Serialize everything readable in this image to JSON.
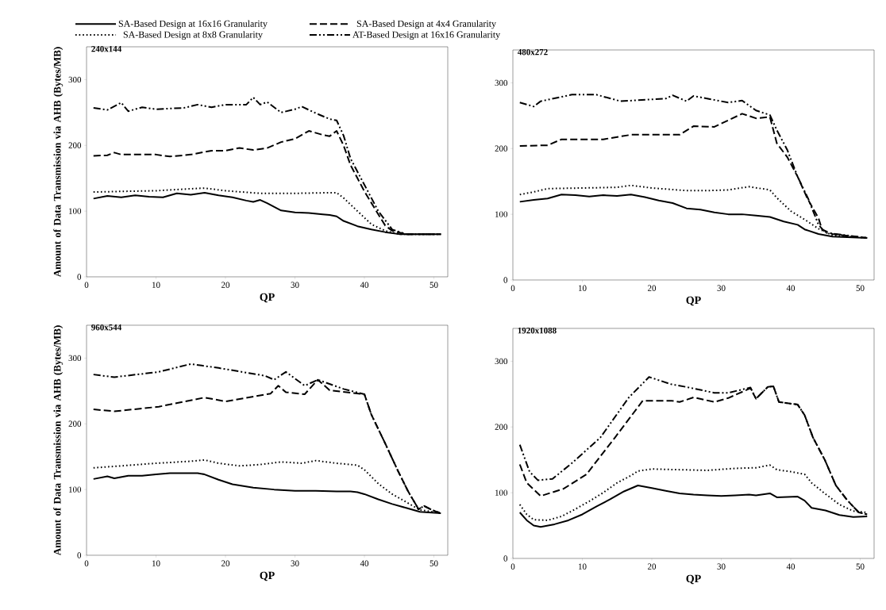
{
  "chart_data": [
    {
      "type": "line",
      "title": "240x144",
      "xlabel": "QP",
      "ylabel": "Amount of Data Transmission via AHB (Bytes/MB)",
      "xlim": [
        0,
        52
      ],
      "ylim": [
        0,
        350
      ],
      "xticks": [
        0,
        10,
        20,
        30,
        40,
        50
      ],
      "yticks": [
        0,
        100,
        200,
        300
      ],
      "legend": "top",
      "series": [
        {
          "name": "SA-Based Design at 16x16 Granularity",
          "color": "#000000",
          "line_style": "solid",
          "x": [
            1,
            3,
            5,
            7,
            9,
            11,
            13,
            15,
            17,
            19,
            21,
            23,
            24,
            25,
            26,
            28,
            30,
            32,
            34,
            35,
            36,
            37,
            39,
            41,
            43,
            45,
            51
          ],
          "values": [
            119,
            123,
            121,
            124,
            122,
            121,
            127,
            125,
            128,
            124,
            121,
            116,
            114,
            117,
            112,
            101,
            98,
            97,
            95,
            94,
            92,
            85,
            77,
            72,
            68,
            65,
            65
          ]
        },
        {
          "name": "SA-Based Design at 4x4 Granularity",
          "color": "#000000",
          "line_style": "dashed",
          "x": [
            1,
            3,
            4,
            5,
            10,
            12,
            15,
            18,
            20,
            22,
            24,
            26,
            28,
            30,
            32,
            34,
            35,
            36,
            37,
            38,
            40,
            42,
            43,
            44,
            46,
            51
          ],
          "values": [
            184,
            185,
            189,
            186,
            186,
            183,
            186,
            192,
            192,
            196,
            193,
            196,
            205,
            210,
            222,
            216,
            214,
            222,
            200,
            170,
            130,
            95,
            78,
            70,
            65,
            65
          ]
        },
        {
          "name": "SA-Based Design at 8x8 Granularity",
          "color": "#000000",
          "line_style": "dotted",
          "x": [
            1,
            5,
            10,
            15,
            17,
            20,
            25,
            30,
            35,
            36,
            37,
            39,
            41,
            43,
            45,
            51
          ],
          "values": [
            129,
            130,
            131,
            134,
            135,
            131,
            127,
            127,
            128,
            128,
            120,
            100,
            80,
            70,
            65,
            65
          ]
        },
        {
          "name": "AT-Based Design at 16x16 Granularity",
          "color": "#000000",
          "line_style": "dashdot",
          "x": [
            1,
            3,
            5,
            6,
            8,
            10,
            14,
            16,
            18,
            20,
            23,
            24,
            25,
            26,
            28,
            30,
            31,
            33,
            35,
            36,
            37,
            38,
            40,
            42,
            44,
            46,
            51
          ],
          "values": [
            257,
            254,
            265,
            252,
            258,
            255,
            257,
            262,
            258,
            262,
            262,
            273,
            262,
            266,
            250,
            255,
            259,
            249,
            240,
            238,
            215,
            180,
            140,
            100,
            72,
            65,
            65
          ]
        }
      ]
    },
    {
      "type": "line",
      "title": "480x272",
      "xlabel": "QP",
      "xlim": [
        0,
        52
      ],
      "ylim": [
        0,
        350
      ],
      "xticks": [
        0,
        10,
        20,
        30,
        40,
        50
      ],
      "yticks": [
        0,
        100,
        200,
        300
      ],
      "series": [
        {
          "color": "#000000",
          "line_style": "solid",
          "x": [
            1,
            3,
            5,
            7,
            9,
            11,
            13,
            15,
            17,
            19,
            21,
            23,
            25,
            27,
            29,
            31,
            33,
            35,
            37,
            39,
            41,
            42,
            44,
            46,
            51
          ],
          "values": [
            119,
            122,
            124,
            130,
            129,
            127,
            129,
            128,
            130,
            126,
            121,
            117,
            109,
            107,
            103,
            100,
            100,
            98,
            96,
            89,
            84,
            77,
            70,
            66,
            64
          ]
        },
        {
          "color": "#000000",
          "line_style": "dashed",
          "x": [
            1,
            5,
            7,
            13,
            17,
            24,
            26,
            29,
            33,
            35,
            37,
            38,
            39.5,
            41,
            42.4,
            44,
            44.5,
            46,
            51
          ],
          "values": [
            204,
            205,
            214,
            214,
            221,
            221,
            234,
            233,
            253,
            246,
            248,
            208,
            187,
            157,
            124,
            94,
            77,
            70,
            64
          ]
        },
        {
          "color": "#000000",
          "line_style": "dotted",
          "x": [
            1,
            3,
            5,
            10,
            15,
            17,
            20,
            25,
            28,
            31,
            34,
            37,
            38,
            40,
            42,
            44,
            46,
            51
          ],
          "values": [
            130,
            134,
            139,
            140,
            141,
            144,
            140,
            136,
            136,
            137,
            142,
            137,
            125,
            105,
            92,
            78,
            68,
            64
          ]
        },
        {
          "color": "#000000",
          "line_style": "dashdot",
          "x": [
            1,
            3,
            4,
            8.5,
            12,
            15.5,
            22,
            23,
            25,
            26,
            31,
            33,
            35,
            37,
            38,
            39.5,
            41,
            42.5,
            44,
            45,
            51
          ],
          "values": [
            270,
            264,
            272,
            282,
            282,
            272,
            276,
            281,
            272,
            280,
            270,
            273,
            258,
            251,
            228,
            198,
            157,
            124,
            84,
            72,
            64
          ]
        }
      ]
    },
    {
      "type": "line",
      "title": "960x544",
      "xlabel": "QP",
      "ylabel": "Amount of Data Transmission via AHB (Bytes/MB)",
      "xlim": [
        0,
        52
      ],
      "ylim": [
        0,
        350
      ],
      "xticks": [
        0,
        10,
        20,
        30,
        40,
        50
      ],
      "yticks": [
        0,
        100,
        200,
        300
      ],
      "series": [
        {
          "color": "#000000",
          "line_style": "solid",
          "x": [
            1,
            3,
            4,
            6,
            8,
            10,
            12,
            14,
            16,
            17,
            19,
            21,
            24,
            27,
            30,
            33,
            36,
            38,
            39,
            40,
            42,
            44,
            46,
            48,
            51
          ],
          "values": [
            116,
            120,
            117,
            121,
            121,
            123,
            125,
            125,
            125,
            123,
            115,
            108,
            103,
            100,
            98,
            98,
            97,
            97,
            96,
            93,
            85,
            78,
            72,
            66,
            64
          ]
        },
        {
          "color": "#000000",
          "line_style": "dashed",
          "x": [
            1,
            4,
            10.4,
            17,
            20,
            26.5,
            27.6,
            28.7,
            31.4,
            33.3,
            35,
            40,
            41,
            43,
            44.8,
            46.3,
            47.8,
            48.6,
            49.7,
            51
          ],
          "values": [
            222,
            219,
            226,
            240,
            234,
            246,
            258,
            248,
            245,
            267,
            251,
            245,
            214,
            170,
            129,
            97,
            70,
            75,
            69,
            64
          ]
        },
        {
          "color": "#000000",
          "line_style": "dotted",
          "x": [
            1,
            5,
            10,
            15,
            17,
            19,
            22,
            25,
            28,
            31,
            33,
            36,
            39,
            40,
            42,
            44,
            46,
            48,
            51
          ],
          "values": [
            133,
            136,
            140,
            143,
            145,
            140,
            136,
            138,
            142,
            140,
            144,
            140,
            137,
            130,
            109,
            93,
            81,
            69,
            64
          ]
        },
        {
          "color": "#000000",
          "line_style": "dashdot",
          "x": [
            1,
            4,
            10.4,
            15,
            19,
            25.7,
            27,
            28.7,
            31.4,
            33.3,
            37,
            40,
            41,
            43,
            44.8,
            46.3,
            47.8,
            48.6,
            49.7,
            51
          ],
          "values": [
            275,
            271,
            279,
            291,
            285,
            273,
            267,
            279,
            258,
            267,
            253,
            245,
            214,
            170,
            129,
            97,
            70,
            75,
            69,
            64
          ]
        }
      ]
    },
    {
      "type": "line",
      "title": "1920x1088",
      "xlabel": "QP",
      "xlim": [
        0,
        52
      ],
      "ylim": [
        0,
        350
      ],
      "xticks": [
        0,
        10,
        20,
        30,
        40,
        50
      ],
      "yticks": [
        0,
        100,
        200,
        300
      ],
      "series": [
        {
          "color": "#000000",
          "line_style": "solid",
          "x": [
            1,
            2,
            3,
            4,
            6,
            8,
            10,
            12,
            14,
            16,
            18,
            20,
            22,
            24,
            26,
            28,
            30,
            32,
            34,
            35,
            37,
            38,
            41,
            42,
            43,
            45,
            47,
            49,
            51
          ],
          "values": [
            70,
            58,
            50,
            48,
            52,
            58,
            67,
            79,
            90,
            102,
            111,
            107,
            103,
            99,
            97,
            96,
            95,
            96,
            97,
            96,
            99,
            93,
            94,
            88,
            77,
            73,
            66,
            63,
            64
          ]
        },
        {
          "color": "#000000",
          "line_style": "dashed",
          "x": [
            1,
            2,
            4,
            7.3,
            10.6,
            14.7,
            18.7,
            22.8,
            24,
            26,
            29,
            31,
            34.2,
            35,
            36.7,
            37.5,
            38.3,
            41,
            42,
            43.2,
            44.9,
            46.5,
            48.1,
            49.8,
            51
          ],
          "values": [
            143,
            115,
            95,
            106,
            128,
            184,
            240,
            240,
            238,
            245,
            238,
            244,
            259,
            243,
            261,
            262,
            238,
            234,
            218,
            184,
            150,
            111,
            89,
            70,
            67
          ]
        },
        {
          "color": "#000000",
          "line_style": "dotted",
          "x": [
            1,
            2,
            3,
            5,
            7,
            9,
            11,
            13,
            15,
            17,
            18,
            20,
            24,
            28,
            32,
            35,
            37,
            38,
            40,
            42,
            43,
            45,
            47,
            49,
            51
          ],
          "values": [
            82,
            67,
            59,
            58,
            64,
            75,
            87,
            100,
            115,
            126,
            133,
            136,
            135,
            134,
            137,
            138,
            142,
            135,
            132,
            128,
            115,
            98,
            82,
            72,
            70
          ]
        },
        {
          "color": "#000000",
          "line_style": "dashdot",
          "x": [
            1,
            2.4,
            3.6,
            5.7,
            8.5,
            12.6,
            16.7,
            19.6,
            22.8,
            24.9,
            29,
            31,
            34.2,
            35,
            36.7,
            37.5,
            38.3,
            41,
            42,
            43.2,
            44.9,
            46.5,
            48.1,
            49.8,
            51
          ],
          "values": [
            173,
            132,
            119,
            121,
            145,
            184,
            245,
            276,
            265,
            261,
            252,
            252,
            260,
            243,
            261,
            262,
            238,
            234,
            218,
            184,
            150,
            111,
            89,
            70,
            67
          ]
        }
      ]
    }
  ]
}
